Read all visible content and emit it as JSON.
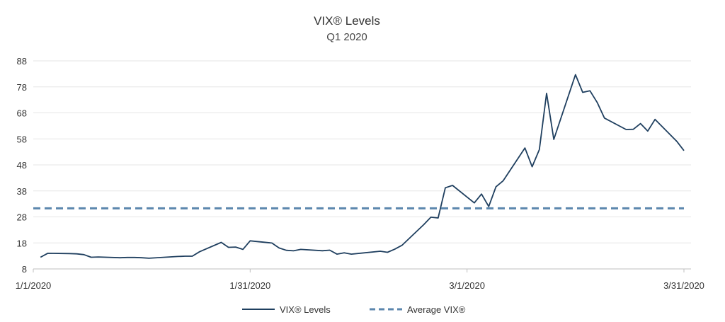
{
  "chart_data": {
    "type": "line",
    "title": "VIX® Levels",
    "subtitle": "Q1 2020",
    "xlabel": "",
    "ylabel": "",
    "ylim": [
      8,
      88
    ],
    "yticks": [
      8,
      18,
      28,
      38,
      48,
      58,
      68,
      78,
      88
    ],
    "xlim": [
      "2020-01-01",
      "2020-03-31"
    ],
    "xticks": [
      "1/1/2020",
      "1/31/2020",
      "3/1/2020",
      "3/31/2020"
    ],
    "grid": true,
    "legend_position": "bottom",
    "series": [
      {
        "name": "VIX® Levels",
        "color": "#1f3f5f",
        "style": "solid",
        "points": [
          [
            "2020-01-02",
            12.5
          ],
          [
            "2020-01-03",
            14.0
          ],
          [
            "2020-01-06",
            13.9
          ],
          [
            "2020-01-07",
            13.8
          ],
          [
            "2020-01-08",
            13.5
          ],
          [
            "2020-01-09",
            12.5
          ],
          [
            "2020-01-10",
            12.6
          ],
          [
            "2020-01-13",
            12.3
          ],
          [
            "2020-01-14",
            12.4
          ],
          [
            "2020-01-15",
            12.4
          ],
          [
            "2020-01-16",
            12.3
          ],
          [
            "2020-01-17",
            12.1
          ],
          [
            "2020-01-21",
            12.8
          ],
          [
            "2020-01-22",
            12.9
          ],
          [
            "2020-01-23",
            12.9
          ],
          [
            "2020-01-24",
            14.6
          ],
          [
            "2020-01-27",
            18.2
          ],
          [
            "2020-01-28",
            16.3
          ],
          [
            "2020-01-29",
            16.4
          ],
          [
            "2020-01-30",
            15.5
          ],
          [
            "2020-01-31",
            18.8
          ],
          [
            "2020-02-03",
            17.97
          ],
          [
            "2020-02-04",
            16.05
          ],
          [
            "2020-02-05",
            15.15
          ],
          [
            "2020-02-06",
            14.96
          ],
          [
            "2020-02-07",
            15.5
          ],
          [
            "2020-02-10",
            15.0
          ],
          [
            "2020-02-11",
            15.2
          ],
          [
            "2020-02-12",
            13.7
          ],
          [
            "2020-02-13",
            14.2
          ],
          [
            "2020-02-14",
            13.7
          ],
          [
            "2020-02-18",
            14.8
          ],
          [
            "2020-02-19",
            14.4
          ],
          [
            "2020-02-20",
            15.6
          ],
          [
            "2020-02-21",
            17.1
          ],
          [
            "2020-02-24",
            25.0
          ],
          [
            "2020-02-25",
            27.9
          ],
          [
            "2020-02-26",
            27.6
          ],
          [
            "2020-02-27",
            39.2
          ],
          [
            "2020-02-28",
            40.1
          ],
          [
            "2020-03-02",
            33.4
          ],
          [
            "2020-03-03",
            36.8
          ],
          [
            "2020-03-04",
            31.99
          ],
          [
            "2020-03-05",
            39.6
          ],
          [
            "2020-03-06",
            41.9
          ],
          [
            "2020-03-09",
            54.5
          ],
          [
            "2020-03-10",
            47.3
          ],
          [
            "2020-03-11",
            53.9
          ],
          [
            "2020-03-12",
            75.5
          ],
          [
            "2020-03-13",
            57.8
          ],
          [
            "2020-03-16",
            82.7
          ],
          [
            "2020-03-17",
            75.9
          ],
          [
            "2020-03-18",
            76.5
          ],
          [
            "2020-03-19",
            72.0
          ],
          [
            "2020-03-20",
            66.0
          ],
          [
            "2020-03-23",
            61.6
          ],
          [
            "2020-03-24",
            61.7
          ],
          [
            "2020-03-25",
            63.9
          ],
          [
            "2020-03-26",
            61.0
          ],
          [
            "2020-03-27",
            65.5
          ],
          [
            "2020-03-30",
            57.1
          ],
          [
            "2020-03-31",
            53.5
          ]
        ]
      },
      {
        "name": "Average VIX®",
        "color": "#5b86ad",
        "style": "dashed",
        "points": [
          [
            "2020-01-01",
            31.3
          ],
          [
            "2020-03-31",
            31.3
          ]
        ]
      }
    ]
  }
}
